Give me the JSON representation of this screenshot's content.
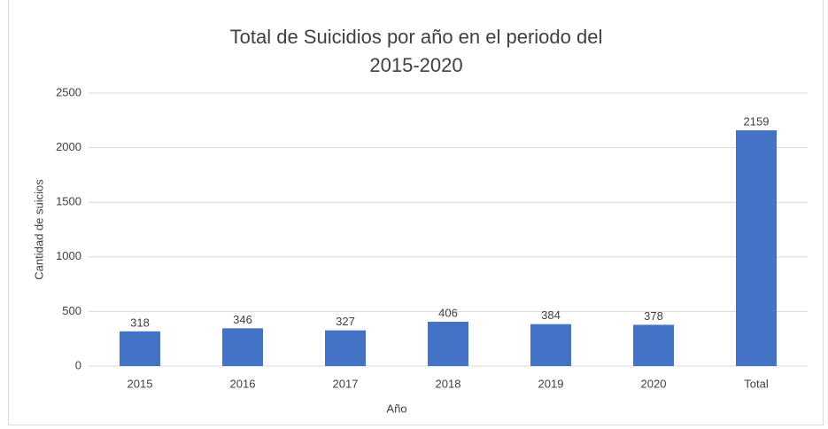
{
  "chart_data": {
    "type": "bar",
    "title": "Total de Suicidios por año en el periodo del 2015-2020",
    "categories": [
      "2015",
      "2016",
      "2017",
      "2018",
      "2019",
      "2020",
      "Total"
    ],
    "values": [
      318,
      346,
      327,
      406,
      384,
      378,
      2159
    ],
    "color": "#4472c4",
    "ylim": [
      0,
      2500
    ],
    "yticks": [
      0,
      500,
      1000,
      1500,
      2000,
      2500
    ],
    "grid": true,
    "xlabel": "Año",
    "ylabel": "Cantidad de suicios"
  }
}
